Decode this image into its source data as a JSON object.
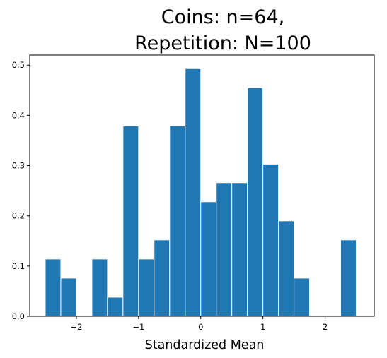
{
  "chart_data": {
    "type": "bar",
    "title_lines": [
      "Coins: n=64,",
      "Repetition: N=100"
    ],
    "xlabel": "Standardized Mean",
    "ylabel": "",
    "xlim": [
      -2.75,
      2.79
    ],
    "ylim": [
      0,
      0.52
    ],
    "grid": false,
    "bar_color": "#1f77b4",
    "edge_color": "#ffffff",
    "bin_width": 0.25,
    "bins": [
      {
        "x0": -2.5,
        "value": 0.114
      },
      {
        "x0": -2.25,
        "value": 0.076
      },
      {
        "x0": -2.0,
        "value": 0.0
      },
      {
        "x0": -1.75,
        "value": 0.114
      },
      {
        "x0": -1.5,
        "value": 0.038
      },
      {
        "x0": -1.25,
        "value": 0.379
      },
      {
        "x0": -1.0,
        "value": 0.114
      },
      {
        "x0": -0.75,
        "value": 0.152
      },
      {
        "x0": -0.5,
        "value": 0.379
      },
      {
        "x0": -0.25,
        "value": 0.493
      },
      {
        "x0": 0.0,
        "value": 0.228
      },
      {
        "x0": 0.25,
        "value": 0.266
      },
      {
        "x0": 0.5,
        "value": 0.266
      },
      {
        "x0": 0.75,
        "value": 0.455
      },
      {
        "x0": 1.0,
        "value": 0.303
      },
      {
        "x0": 1.25,
        "value": 0.19
      },
      {
        "x0": 1.5,
        "value": 0.076
      },
      {
        "x0": 1.75,
        "value": 0.0
      },
      {
        "x0": 2.0,
        "value": 0.0
      },
      {
        "x0": 2.25,
        "value": 0.152
      }
    ],
    "x_ticks": [
      {
        "value": -2,
        "label": "−2"
      },
      {
        "value": -1,
        "label": "−1"
      },
      {
        "value": 0,
        "label": "0"
      },
      {
        "value": 1,
        "label": "1"
      },
      {
        "value": 2,
        "label": "2"
      }
    ],
    "y_ticks": [
      {
        "value": 0.0,
        "label": "0.0"
      },
      {
        "value": 0.1,
        "label": "0.1"
      },
      {
        "value": 0.2,
        "label": "0.2"
      },
      {
        "value": 0.3,
        "label": "0.3"
      },
      {
        "value": 0.4,
        "label": "0.4"
      },
      {
        "value": 0.5,
        "label": "0.5"
      }
    ]
  }
}
